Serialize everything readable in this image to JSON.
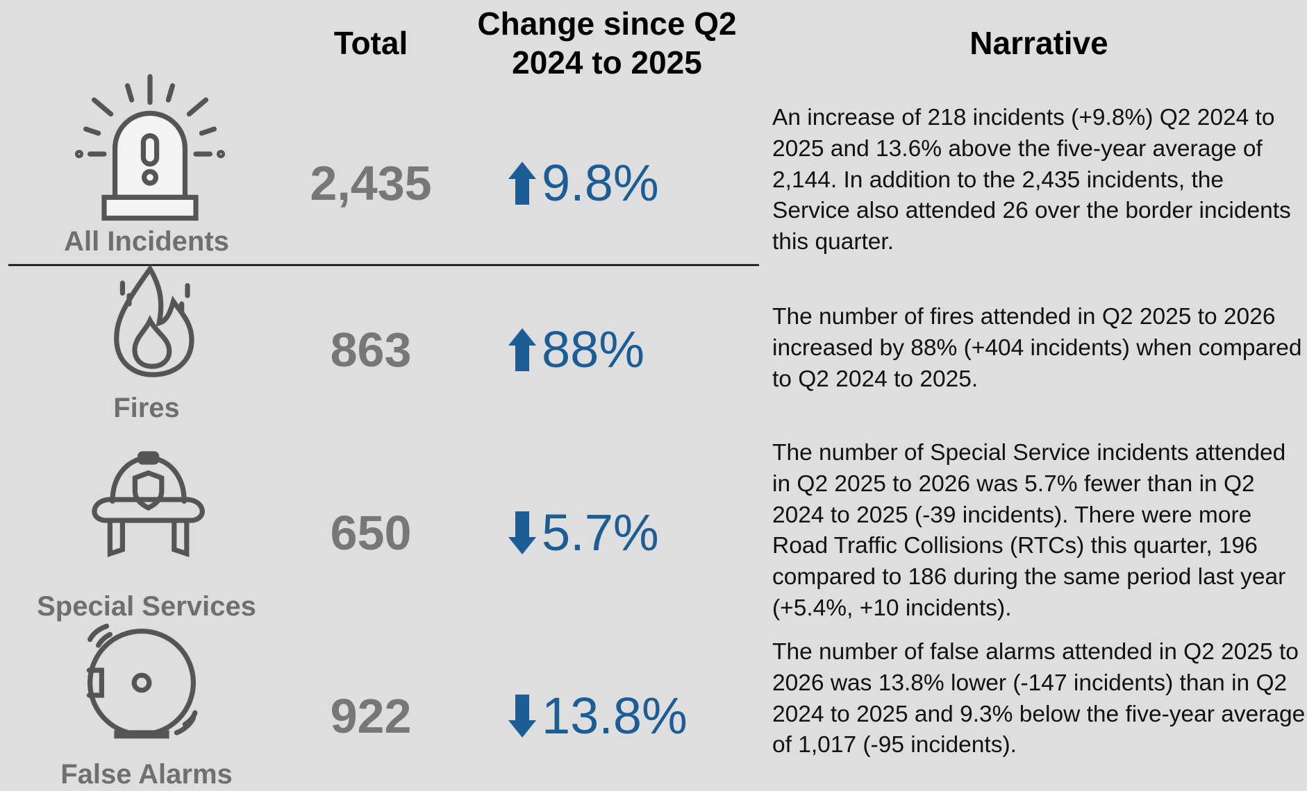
{
  "header": {
    "total": "Total",
    "change": "Change since Q2 2024 to 2025",
    "narrative": "Narrative"
  },
  "rows": [
    {
      "label": "All Incidents",
      "total": "2,435",
      "change": "9.8%",
      "direction": "up",
      "narrative": "An increase of 218 incidents (+9.8%) Q2 2024 to 2025 and 13.6% above the five-year average of 2,144. In addition to the 2,435 incidents, the Service also attended 26 over the border incidents this quarter."
    },
    {
      "label": "Fires",
      "total": "863",
      "change": "88%",
      "direction": "up",
      "narrative": "The number of fires attended in Q2 2025 to 2026 increased by 88% (+404 incidents) when compared to Q2 2024 to 2025."
    },
    {
      "label": "Special Services",
      "total": "650",
      "change": "5.7%",
      "direction": "down",
      "narrative": "The number of Special Service incidents attended in Q2 2025 to 2026 was 5.7% fewer than in Q2 2024 to 2025 (-39 incidents). There were more Road Traffic Collisions (RTCs) this quarter, 196 compared to 186 during the same period last year (+5.4%, +10 incidents)."
    },
    {
      "label": "False Alarms",
      "total": "922",
      "change": "13.8%",
      "direction": "down",
      "narrative": "The number of false alarms attended in Q2 2025 to 2026 was 13.8% lower (-147 incidents) than in Q2 2024 to 2025 and 9.3% below the five-year average of 1,017 (-95 incidents)."
    }
  ]
}
